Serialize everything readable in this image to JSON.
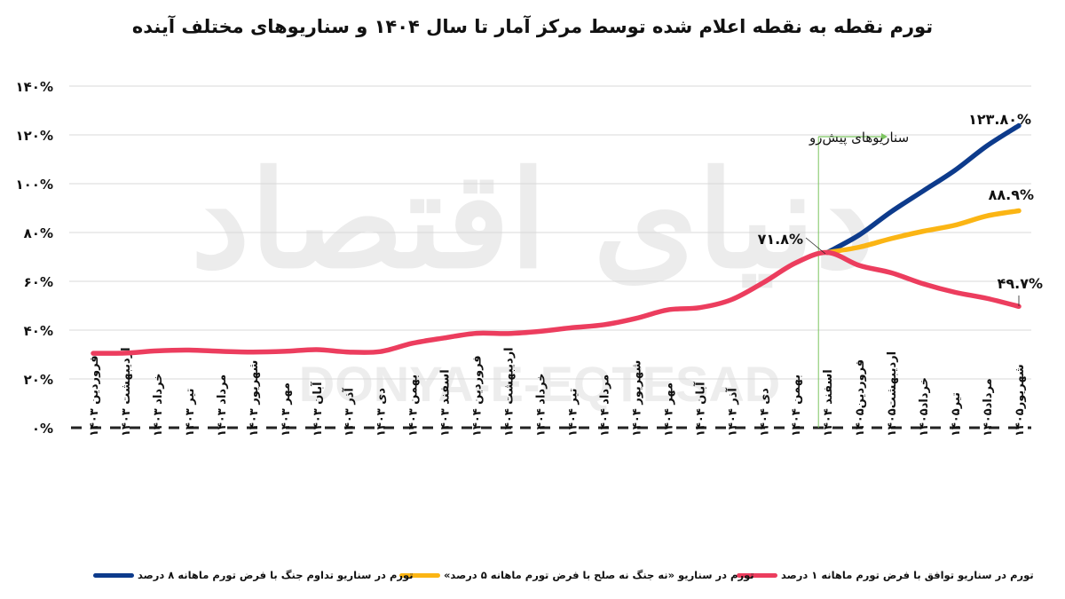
{
  "title": "تورم نقطه به نقطه اعلام شده توسط مرکز آمار تا سال ۱۴۰۴ و سناریوهای مختلف آینده",
  "watermark": {
    "fa": "دنیای اقتصاد",
    "en": "DONYA-E-EQTESAD"
  },
  "annotations": {
    "forecast_label": "سناریوهای پیش‌رو",
    "pivot_value": "۷۱.۸%",
    "blue_end": "۱۲۳.۸۰%",
    "yellow_end": "۸۸.۹%",
    "red_end": "۴۹.۷%"
  },
  "colors": {
    "blue": "#0d3b8c",
    "yellow": "#fbb514",
    "red": "#ec3d5e",
    "forecast_marker": "#7cc560",
    "grid": "#d9d9d9"
  },
  "legend": [
    {
      "label": "تورم در سناریو توافق با فرض تورم ماهانه ۱ درصد",
      "color": "#ec3d5e"
    },
    {
      "label": "تورم در سناریو «نه جنگ نه صلح با فرض تورم ماهانه ۵ درصد»",
      "color": "#fbb514"
    },
    {
      "label": "تورم در سناریو تداوم جنگ با فرض تورم ماهانه ۸ درصد",
      "color": "#0d3b8c"
    }
  ],
  "chart_data": {
    "type": "line",
    "title": "تورم نقطه به نقطه اعلام شده توسط مرکز آمار تا سال ۱۴۰۴ و سناریوهای مختلف آینده",
    "xlabel": "",
    "ylabel": "",
    "ylim": [
      0,
      140
    ],
    "yticks": [
      0,
      20,
      40,
      60,
      80,
      100,
      120,
      140
    ],
    "ytick_labels": [
      "۰%",
      "۲۰%",
      "۴۰%",
      "۶۰%",
      "۸۰%",
      "۱۰۰%",
      "۱۲۰%",
      "۱۴۰%"
    ],
    "grid": true,
    "legend_position": "bottom",
    "categories": [
      "فروردین ۱۴۰۳",
      "اردیبهشت ۱۴۰۳",
      "خرداد ۱۴۰۳",
      "تیر ۱۴۰۳",
      "مرداد ۱۴۰۳",
      "شهریور ۱۴۰۳",
      "مهر ۱۴۰۳",
      "آبان ۱۴۰۳",
      "آذر ۱۴۰۳",
      "دی ۱۴۰۳",
      "بهمن ۱۴۰۳",
      "اسفند ۱۴۰۳",
      "فروردین ۱۴۰۴",
      "اردیبهشت ۱۴۰۴",
      "خرداد ۱۴۰۴",
      "تیر ۱۴۰۴",
      "مرداد ۱۴۰۴",
      "شهریور ۱۴۰۴",
      "مهر ۱۴۰۴",
      "آبان ۱۴۰۴",
      "آذر ۱۴۰۴",
      "دی ۱۴۰۴",
      "بهمن ۱۴۰۴",
      "اسفند ۱۴۰۴",
      "فروردین۱۴۰۵",
      "اردیبهشت۱۴۰۵",
      "خرداد۱۴۰۵",
      "تیر۱۴۰۵",
      "مرداد۱۴۰۵",
      "شهریور۱۴۰۵"
    ],
    "series": [
      {
        "name": "تورم در سناریو توافق با فرض تورم ماهانه ۱ درصد",
        "color": "#ec3d5e",
        "values": [
          30.5,
          30.6,
          31.5,
          31.8,
          31.3,
          31.0,
          31.3,
          32.0,
          31.0,
          31.2,
          34.6,
          36.8,
          38.7,
          38.6,
          39.5,
          41.0,
          42.2,
          44.8,
          48.3,
          49.2,
          52.5,
          59.5,
          67.5,
          71.8,
          66.5,
          63.5,
          59.0,
          55.5,
          53.0,
          49.7
        ]
      },
      {
        "name": "تورم در سناریو «نه جنگ نه صلح با فرض تورم ماهانه ۵ درصد»",
        "color": "#fbb514",
        "values": [
          null,
          null,
          null,
          null,
          null,
          null,
          null,
          null,
          null,
          null,
          null,
          null,
          null,
          null,
          null,
          null,
          null,
          null,
          null,
          null,
          null,
          null,
          null,
          71.8,
          74.0,
          77.5,
          80.5,
          83.0,
          86.8,
          88.9
        ]
      },
      {
        "name": "تورم در سناریو تداوم جنگ با فرض تورم ماهانه ۸ درصد",
        "color": "#0d3b8c",
        "values": [
          null,
          null,
          null,
          null,
          null,
          null,
          null,
          null,
          null,
          null,
          null,
          null,
          null,
          null,
          null,
          null,
          null,
          null,
          null,
          null,
          null,
          null,
          null,
          71.8,
          79.0,
          88.5,
          97.0,
          105.5,
          115.5,
          123.8
        ]
      }
    ],
    "annotations": [
      {
        "text": "۷۱.۸%",
        "x": "اسفند ۱۴۰۴",
        "y": 71.8
      },
      {
        "text": "۱۲۳.۸۰%",
        "x": "شهریور۱۴۰۵",
        "y": 123.8
      },
      {
        "text": "۸۸.۹%",
        "x": "شهریور۱۴۰۵",
        "y": 88.9
      },
      {
        "text": "۴۹.۷%",
        "x": "شهریور۱۴۰۵",
        "y": 49.7
      },
      {
        "text": "سناریوهای پیش‌رو",
        "x": "اسفند ۱۴۰۴",
        "y": 120
      }
    ]
  }
}
